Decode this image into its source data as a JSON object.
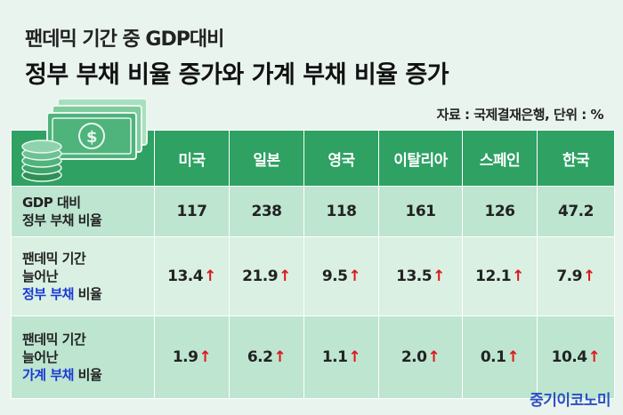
{
  "title": {
    "line1": "팬데믹 기간 중 GDP대비",
    "line2": "정부 부채 비율 증가와 가계 부채 비율 증가"
  },
  "source": "자료 : 국제결재은행, 단위 : %",
  "table": {
    "countries": [
      "미국",
      "일본",
      "영국",
      "이탈리아",
      "스페인",
      "한국"
    ],
    "rows": [
      {
        "label_lines": [
          "GDP 대비",
          "정부 부채 비율"
        ],
        "values": [
          "117",
          "238",
          "118",
          "161",
          "126",
          "47.2"
        ],
        "arrow": false
      },
      {
        "label_lines": [
          "팬데믹 기간",
          "늘어난"
        ],
        "label_highlight": "정부 부채",
        "label_suffix": " 비율",
        "values": [
          "13.4",
          "21.9",
          "9.5",
          "13.5",
          "12.1",
          "7.9"
        ],
        "arrow": true
      },
      {
        "label_lines": [
          "팬데믹 기간",
          "늘어난"
        ],
        "label_highlight": "가계 부채",
        "label_suffix": " 비율",
        "values": [
          "1.9",
          "6.2",
          "1.1",
          "2.0",
          "0.1",
          "10.4"
        ],
        "arrow": true
      }
    ],
    "arrow_symbol": "↑"
  },
  "brand": "중기이코노미",
  "icon": "money-stack-icon",
  "colors": {
    "header": "#2ea163",
    "row_dark": "#bde5d0",
    "row_light": "#d9f0e3",
    "highlight": "#1b39d6",
    "arrow": "#e0151b",
    "brand": "#2d4fc4"
  }
}
